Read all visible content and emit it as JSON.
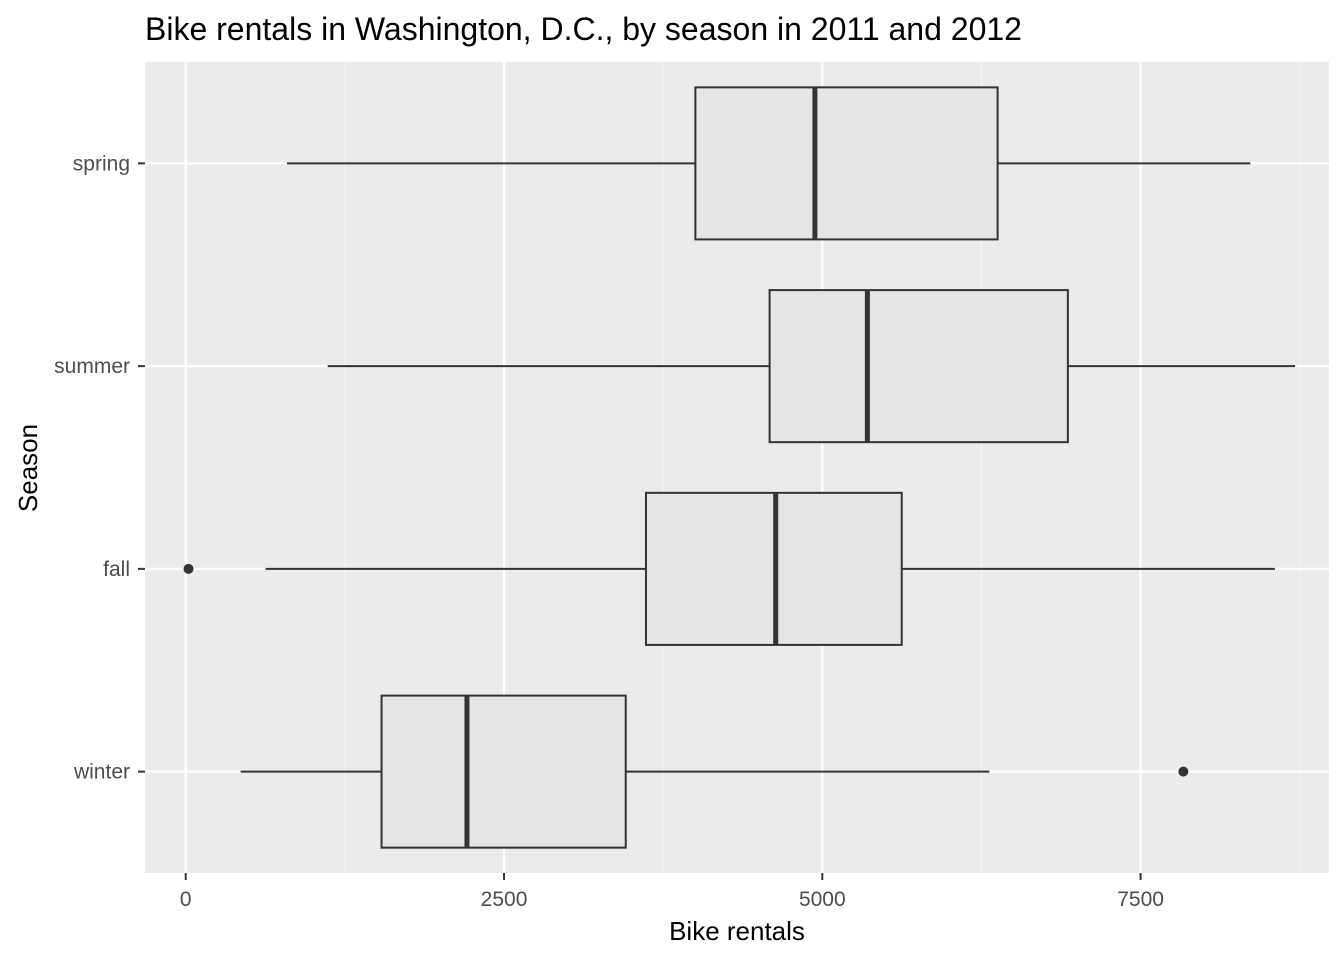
{
  "chart_data": {
    "type": "boxplot",
    "orientation": "horizontal",
    "title": "Bike rentals in Washington, D.C., by season in 2011 and 2012",
    "xlabel": "Bike rentals",
    "ylabel": "Season",
    "xlim": [
      -320,
      8980
    ],
    "xticks": [
      0,
      2500,
      5000,
      7500
    ],
    "xtick_labels": [
      "0",
      "2500",
      "5000",
      "7500"
    ],
    "grid": true,
    "legend": "none",
    "colors": {
      "panel": "#ebebeb",
      "grid_major": "#ffffff",
      "grid_minor": "#f5f5f5",
      "box_fill": "#e5e5e5",
      "box_stroke": "#333333",
      "tick_label": "#4d4d4d"
    },
    "categories": [
      "spring",
      "summer",
      "fall",
      "winter"
    ],
    "series": [
      {
        "category": "spring",
        "whisker_low": 795,
        "q1": 4003,
        "median": 4942,
        "q3": 6377,
        "whisker_high": 8362,
        "outliers": []
      },
      {
        "category": "summer",
        "whisker_low": 1115,
        "q1": 4586,
        "median": 5354,
        "q3": 6929,
        "whisker_high": 8714,
        "outliers": []
      },
      {
        "category": "fall",
        "whisker_low": 627,
        "q1": 3615,
        "median": 4634,
        "q3": 5624,
        "whisker_high": 8555,
        "outliers": [
          22
        ]
      },
      {
        "category": "winter",
        "whisker_low": 431,
        "q1": 1538,
        "median": 2209,
        "q3": 3456,
        "whisker_high": 6312,
        "outliers": [
          7836
        ]
      }
    ]
  }
}
